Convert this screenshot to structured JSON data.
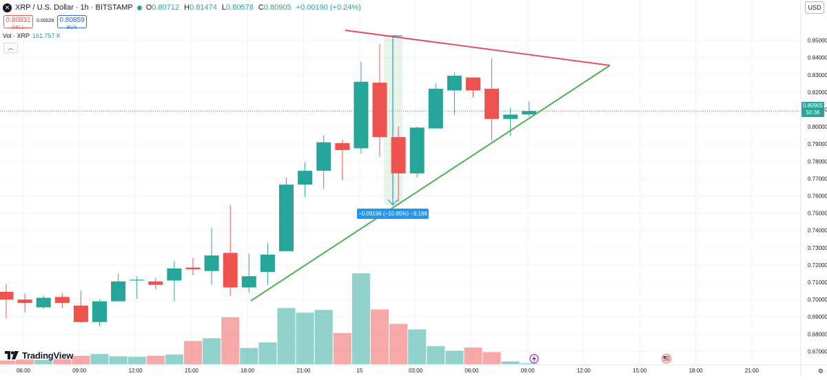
{
  "header": {
    "symbol_icon": "close-x-icon",
    "title": "XRP / U.S. Dollar · 1h · BITSTAMP",
    "open_label": "O",
    "open": "0.80712",
    "high_label": "H",
    "high": "0.81474",
    "low_label": "L",
    "low": "0.80578",
    "close_label": "C",
    "close": "0.80905",
    "change": "+0.00190 (+0.24%)",
    "status_color": "#26a69a"
  },
  "trade": {
    "sell_price": "0.80831",
    "sell_label": "SELL",
    "spread": "0.00028",
    "buy_price": "0.80859",
    "buy_label": "BUY"
  },
  "volume_legend": {
    "label": "Vol · XRP",
    "value": "161.757 K"
  },
  "collapse_icon": "chevron-up-icon",
  "currency": "USD",
  "last_price": {
    "value": "0.80905",
    "countdown": "50:36"
  },
  "measure": {
    "label": "−0.09196 (−10.85%) −9,196"
  },
  "logo": {
    "text": "TradingView",
    "icon": "tradingview-logo-icon"
  },
  "event_icons": [
    "lightning-icon",
    "us-flag-icon"
  ],
  "settings_icon": "gear-icon",
  "colors": {
    "up": "#26a69a",
    "down": "#ef5350",
    "resistance": "#e05260",
    "support": "#4caf50",
    "measure": "#2196f3"
  },
  "chart_data": {
    "type": "candlestick",
    "ylim": [
      0.665,
      0.855
    ],
    "y_ticks": [
      "0.85000",
      "0.84000",
      "0.83000",
      "0.82000",
      "0.81000",
      "0.80000",
      "0.79000",
      "0.78000",
      "0.77000",
      "0.76000",
      "0.75000",
      "0.74000",
      "0.73000",
      "0.72000",
      "0.71000",
      "0.70000",
      "0.69000",
      "0.68000",
      "0.67000"
    ],
    "x_ticks": [
      "06:00",
      "09:00",
      "12:00",
      "15:00",
      "18:00",
      "21:00",
      "15",
      "03:00",
      "06:00",
      "09:00",
      "12:00",
      "15:00",
      "18:00",
      "21:00"
    ],
    "candles": [
      {
        "o": 0.7045,
        "h": 0.709,
        "l": 0.689,
        "c": 0.7
      },
      {
        "o": 0.7,
        "h": 0.7035,
        "l": 0.6925,
        "c": 0.698
      },
      {
        "o": 0.6955,
        "h": 0.7025,
        "l": 0.6945,
        "c": 0.701
      },
      {
        "o": 0.7015,
        "h": 0.7035,
        "l": 0.695,
        "c": 0.698
      },
      {
        "o": 0.6965,
        "h": 0.705,
        "l": 0.6865,
        "c": 0.687
      },
      {
        "o": 0.687,
        "h": 0.7,
        "l": 0.6845,
        "c": 0.699
      },
      {
        "o": 0.699,
        "h": 0.715,
        "l": 0.699,
        "c": 0.7105
      },
      {
        "o": 0.711,
        "h": 0.7135,
        "l": 0.7005,
        "c": 0.7115
      },
      {
        "o": 0.7105,
        "h": 0.7125,
        "l": 0.706,
        "c": 0.7085
      },
      {
        "o": 0.711,
        "h": 0.7225,
        "l": 0.699,
        "c": 0.718
      },
      {
        "o": 0.7185,
        "h": 0.724,
        "l": 0.714,
        "c": 0.7175
      },
      {
        "o": 0.7165,
        "h": 0.7415,
        "l": 0.7085,
        "c": 0.7255
      },
      {
        "o": 0.727,
        "h": 0.7545,
        "l": 0.702,
        "c": 0.707
      },
      {
        "o": 0.707,
        "h": 0.7265,
        "l": 0.704,
        "c": 0.7135
      },
      {
        "o": 0.716,
        "h": 0.7325,
        "l": 0.7085,
        "c": 0.726
      },
      {
        "o": 0.728,
        "h": 0.7705,
        "l": 0.728,
        "c": 0.7665
      },
      {
        "o": 0.7665,
        "h": 0.7795,
        "l": 0.7595,
        "c": 0.7745
      },
      {
        "o": 0.7745,
        "h": 0.795,
        "l": 0.764,
        "c": 0.791
      },
      {
        "o": 0.7905,
        "h": 0.7925,
        "l": 0.769,
        "c": 0.7865
      },
      {
        "o": 0.7875,
        "h": 0.8375,
        "l": 0.7845,
        "c": 0.826
      },
      {
        "o": 0.8255,
        "h": 0.848,
        "l": 0.7825,
        "c": 0.794
      },
      {
        "o": 0.794,
        "h": 0.8,
        "l": 0.7565,
        "c": 0.773
      },
      {
        "o": 0.773,
        "h": 0.8,
        "l": 0.7705,
        "c": 0.7995
      },
      {
        "o": 0.799,
        "h": 0.825,
        "l": 0.799,
        "c": 0.822
      },
      {
        "o": 0.821,
        "h": 0.8315,
        "l": 0.8065,
        "c": 0.8295
      },
      {
        "o": 0.8285,
        "h": 0.8285,
        "l": 0.817,
        "c": 0.821
      },
      {
        "o": 0.822,
        "h": 0.8395,
        "l": 0.792,
        "c": 0.8045
      },
      {
        "o": 0.8045,
        "h": 0.811,
        "l": 0.7945,
        "c": 0.807
      },
      {
        "o": 0.8071,
        "h": 0.8147,
        "l": 0.8058,
        "c": 0.8091
      }
    ],
    "volumes": [
      8,
      10,
      9,
      11,
      18,
      22,
      17,
      16,
      18,
      21,
      50,
      56,
      101,
      35,
      47,
      121,
      111,
      117,
      67,
      196,
      118,
      87,
      75,
      39,
      29,
      36,
      26,
      6,
      2
    ]
  }
}
